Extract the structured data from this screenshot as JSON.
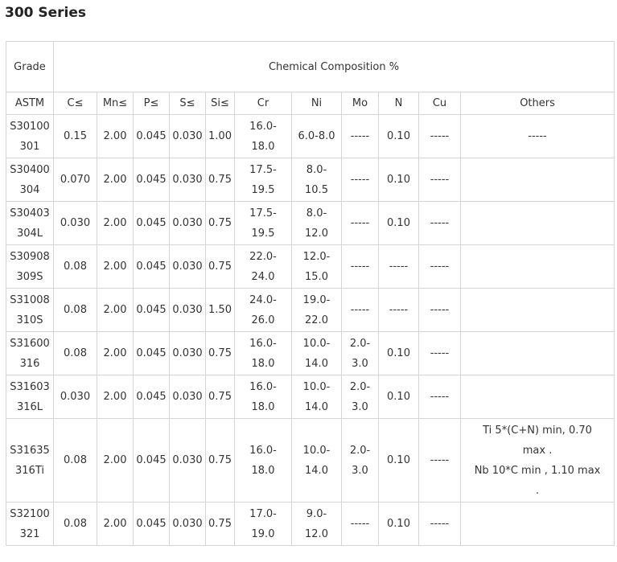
{
  "page": {
    "title": "300 Series"
  },
  "table": {
    "header": {
      "grade": "Grade",
      "chemical_composition": "Chemical Composition %"
    },
    "columns": [
      "ASTM",
      "C≤",
      "Mn≤",
      "P≤",
      "S≤",
      "Si≤",
      "Cr",
      "Ni",
      "Mo",
      "N",
      "Cu",
      "Others"
    ],
    "rows": [
      [
        "S30100\n301",
        "0.15",
        "2.00",
        "0.045",
        "0.030",
        "1.00",
        "16.0-\n18.0",
        "6.0-8.0",
        "-----",
        "0.10",
        "-----",
        "-----"
      ],
      [
        "S30400\n304",
        "0.070",
        "2.00",
        "0.045",
        "0.030",
        "0.75",
        "17.5-\n19.5",
        "8.0-\n10.5",
        "-----",
        "0.10",
        "-----",
        ""
      ],
      [
        "S30403\n304L",
        "0.030",
        "2.00",
        "0.045",
        "0.030",
        "0.75",
        "17.5-\n19.5",
        "8.0-\n12.0",
        "-----",
        "0.10",
        "-----",
        ""
      ],
      [
        "S30908\n309S",
        "0.08",
        "2.00",
        "0.045",
        "0.030",
        "0.75",
        "22.0-\n24.0",
        "12.0-\n15.0",
        "-----",
        "-----",
        "-----",
        ""
      ],
      [
        "S31008\n310S",
        "0.08",
        "2.00",
        "0.045",
        "0.030",
        "1.50",
        "24.0-\n26.0",
        "19.0-\n22.0",
        "-----",
        "-----",
        "-----",
        ""
      ],
      [
        "S31600\n316",
        "0.08",
        "2.00",
        "0.045",
        "0.030",
        "0.75",
        "16.0-\n18.0",
        "10.0-\n14.0",
        "2.0-\n3.0",
        "0.10",
        "-----",
        ""
      ],
      [
        "S31603\n316L",
        "0.030",
        "2.00",
        "0.045",
        "0.030",
        "0.75",
        "16.0-\n18.0",
        "10.0-\n14.0",
        "2.0-\n3.0",
        "0.10",
        "-----",
        ""
      ],
      [
        "S31635\n316Ti",
        "0.08",
        "2.00",
        "0.045",
        "0.030",
        "0.75",
        "16.0-\n18.0",
        "10.0-\n14.0",
        "2.0-\n3.0",
        "0.10",
        "-----",
        "Ti 5*(C+N) min, 0.70\nmax .\nNb 10*C min , 1.10 max\n."
      ],
      [
        "S32100\n321",
        "0.08",
        "2.00",
        "0.045",
        "0.030",
        "0.75",
        "17.0-\n19.0",
        "9.0-\n12.0",
        "-----",
        "0.10",
        "-----",
        ""
      ]
    ]
  },
  "colors": {
    "border": "#d4d4d4",
    "text": "#333333",
    "title": "#222222"
  }
}
